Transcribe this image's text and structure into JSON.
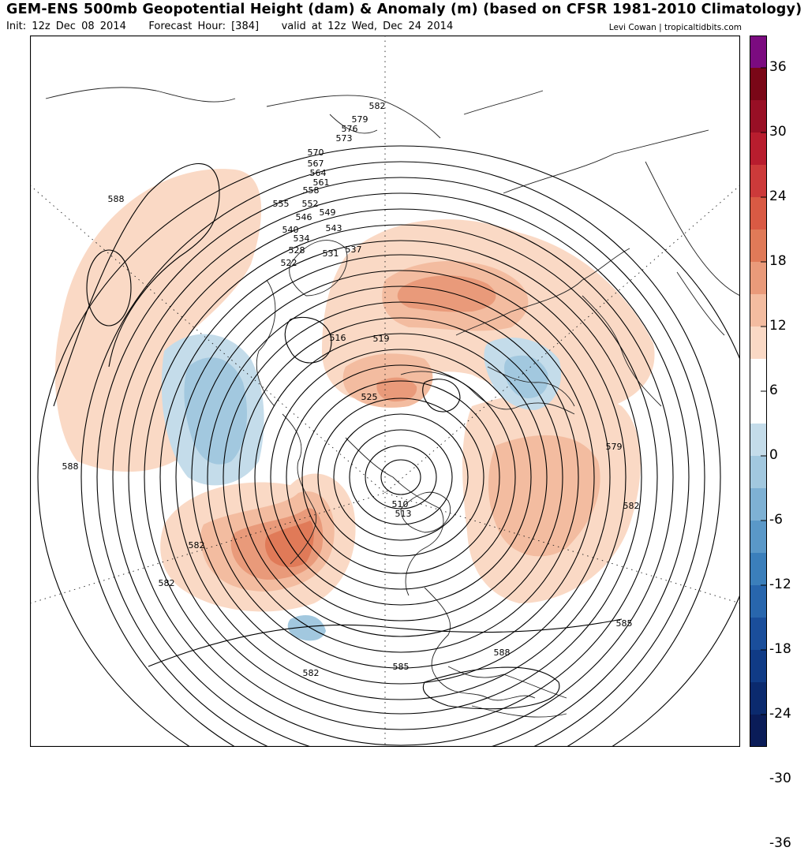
{
  "header": {
    "title": "GEM-ENS 500mb Geopotential Height (dam) & Anomaly (m) (based on CFSR 1981-2010 Climatology)",
    "init": "Init: 12z Dec 08 2014",
    "forecast_hour": "Forecast Hour: [384]",
    "valid": "valid at 12z Wed, Dec 24 2014",
    "credit": "Levi Cowan | tropicaltidbits.com"
  },
  "colorbar": {
    "labels": [
      "36",
      "30",
      "24",
      "18",
      "12",
      "6",
      "0",
      "-6",
      "-12",
      "-18",
      "-24",
      "-30",
      "-36"
    ],
    "colors": [
      "#7b0b80",
      "#7a0717",
      "#980f25",
      "#b81d2e",
      "#cc3a3a",
      "#d95a44",
      "#e07a58",
      "#e99a7a",
      "#f3bca0",
      "#fad9c5",
      "#ffffff",
      "#ffffff",
      "#c4dcea",
      "#a2c8df",
      "#7eb1d4",
      "#5a98c8",
      "#3b7fbb",
      "#2866ad",
      "#1a4e9b",
      "#103b86",
      "#0b2a6e",
      "#0a1c58"
    ]
  },
  "contour_labels": [
    "582",
    "579",
    "576",
    "573",
    "570",
    "567",
    "564",
    "561",
    "558",
    "555",
    "552",
    "549",
    "546",
    "543",
    "540",
    "537",
    "534",
    "531",
    "528",
    "525",
    "522",
    "519",
    "516",
    "513",
    "510",
    "585",
    "588"
  ]
}
